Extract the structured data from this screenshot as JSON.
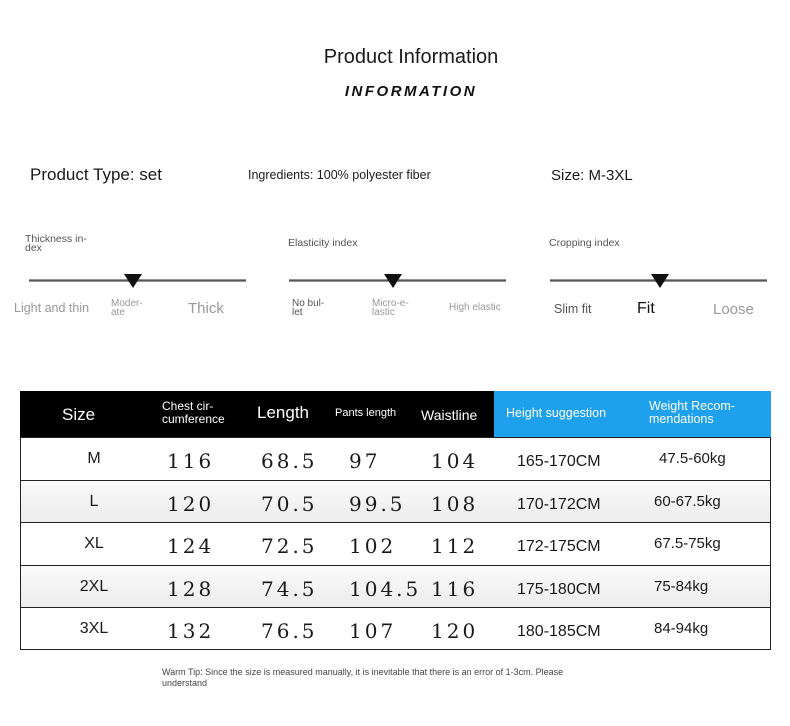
{
  "header": {
    "title": "Product Information",
    "subtitle": "INFORMATION"
  },
  "info": {
    "product_type": "Product Type: set",
    "ingredients": "Ingredients: 100% polyester fiber",
    "size": "Size: M-3XL"
  },
  "indices": [
    {
      "title": "Thickness in-dex",
      "title_lines": [
        "Thickness in-",
        "dex"
      ],
      "labels": [
        "Light and thin",
        "Moder-ate",
        "Thick"
      ],
      "selected_index": 1,
      "selected_fraction": 0.48
    },
    {
      "title": "Elasticity index",
      "labels": [
        "No bul-let",
        "Micro-e-lastic",
        "High elastic"
      ],
      "selected_index": 1,
      "selected_fraction": 0.48
    },
    {
      "title": "Cropping index",
      "labels": [
        "Slim fit",
        "Fit",
        "Loose"
      ],
      "selected_index": 1,
      "selected_fraction": 0.5
    }
  ],
  "table": {
    "headers": {
      "size": "Size",
      "chest_1": "Chest cir-",
      "chest_2": "cumference",
      "length": "Length",
      "pants": "Pants length",
      "waist": "Waistline",
      "height": "Height suggestion",
      "weight_1": "Weight Recom-",
      "weight_2": "mendations"
    },
    "header_colors": {
      "dark": "#000000",
      "accent": "#1ea0ec"
    },
    "rows": [
      {
        "size": "M",
        "chest": "116",
        "length": "68.5",
        "pants": "97",
        "waist": "104",
        "height": "165-170CM",
        "weight": "47.5-60kg"
      },
      {
        "size": "L",
        "chest": "120",
        "length": "70.5",
        "pants": "99.5",
        "waist": "108",
        "height": "170-172CM",
        "weight": "60-67.5kg"
      },
      {
        "size": "XL",
        "chest": "124",
        "length": "72.5",
        "pants": "102",
        "waist": "112",
        "height": "172-175CM",
        "weight": "67.5-75kg"
      },
      {
        "size": "2XL",
        "chest": "128",
        "length": "74.5",
        "pants": "104.5",
        "waist": "116",
        "height": "175-180CM",
        "weight": "75-84kg"
      },
      {
        "size": "3XL",
        "chest": "132",
        "length": "76.5",
        "pants": "107",
        "waist": "120",
        "height": "180-185CM",
        "weight": "84-94kg"
      }
    ]
  },
  "tip": {
    "line1": "Warm Tip: Since the size is measured manually, it is inevitable that there is an error of 1-3cm. Please",
    "line2": "understand"
  }
}
